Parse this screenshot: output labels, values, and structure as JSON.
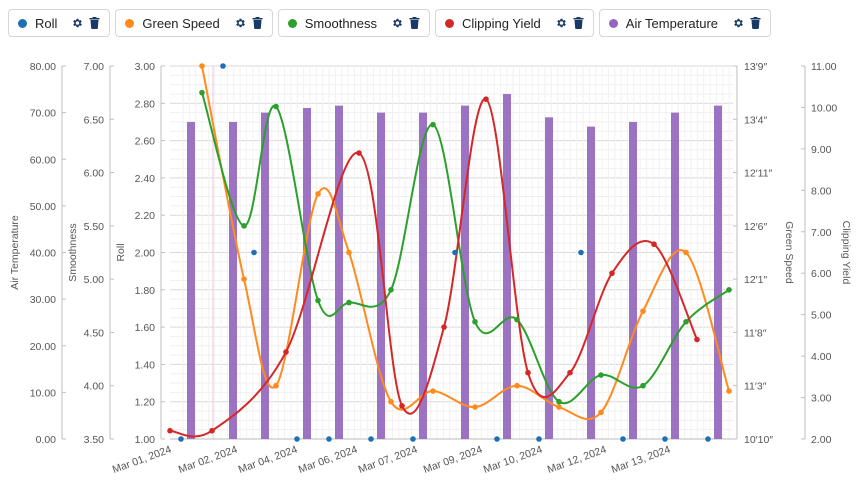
{
  "legend": [
    {
      "label": "Roll",
      "color": "#1f6fb5",
      "settings_icon": "gear-icon",
      "delete_icon": "trash-icon"
    },
    {
      "label": "Green Speed",
      "color": "#ff8a1e",
      "settings_icon": "gear-icon",
      "delete_icon": "trash-icon"
    },
    {
      "label": "Smoothness",
      "color": "#2ca02c",
      "settings_icon": "gear-icon",
      "delete_icon": "trash-icon"
    },
    {
      "label": "Clipping Yield",
      "color": "#d62728",
      "settings_icon": "gear-icon",
      "delete_icon": "trash-icon"
    },
    {
      "label": "Air Temperature",
      "color": "#9467bd",
      "settings_icon": "gear-icon",
      "delete_icon": "trash-icon"
    }
  ],
  "chart_data": {
    "type": "line",
    "x_labels": [
      "Mar 01, 2024",
      "Mar 02, 2024",
      "Mar 04, 2024",
      "Mar 06, 2024",
      "Mar 07, 2024",
      "Mar 09, 2024",
      "Mar 10, 2024",
      "Mar 12, 2024",
      "Mar 13, 2024"
    ],
    "axes": {
      "air_temperature": {
        "title": "Air Temperature",
        "ticks": [
          "0.00",
          "10.00",
          "20.00",
          "30.00",
          "40.00",
          "50.00",
          "60.00",
          "70.00",
          "80.00"
        ],
        "range": [
          0,
          80
        ]
      },
      "smoothness": {
        "title": "Smoothness",
        "ticks": [
          "3.50",
          "4.00",
          "4.50",
          "5.00",
          "5.50",
          "6.00",
          "6.50",
          "7.00"
        ],
        "range": [
          3.5,
          7.0
        ]
      },
      "roll": {
        "title": "Roll",
        "ticks": [
          "1.00",
          "1.20",
          "1.40",
          "1.60",
          "1.80",
          "2.00",
          "2.20",
          "2.40",
          "2.60",
          "2.80",
          "3.00"
        ],
        "range": [
          1.0,
          3.0
        ]
      },
      "green_speed": {
        "title": "Green Speed",
        "ticks": [
          "10′10″",
          "11′3″",
          "11′8″",
          "12′1″",
          "12′6″",
          "12′11″",
          "13′4″",
          "13′9″"
        ],
        "range_inches": [
          130,
          165
        ]
      },
      "clipping_yield": {
        "title": "Clipping Yield",
        "ticks": [
          "2.00",
          "3.00",
          "4.00",
          "5.00",
          "6.00",
          "7.00",
          "8.00",
          "9.00",
          "10.00",
          "11.00"
        ],
        "range": [
          2,
          11
        ]
      }
    },
    "series": [
      {
        "name": "Air Temperature",
        "kind": "bar",
        "axis": "air_temperature",
        "values": [
          68,
          68,
          70,
          71,
          71.5,
          70,
          70,
          71.5,
          74,
          69,
          67,
          68,
          70,
          71.5
        ]
      },
      {
        "name": "Roll",
        "kind": "scatter",
        "axis": "roll",
        "values": [
          1.0,
          3.0,
          2.0,
          1.0,
          1.0,
          1.0,
          1.0,
          2.0,
          1.0,
          1.0,
          2.0,
          1.0,
          1.0,
          1.0
        ]
      },
      {
        "name": "Green Speed",
        "kind": "line",
        "axis": "green_speed",
        "values_inches": [
          165,
          145,
          135,
          153,
          147.5,
          133.5,
          134.5,
          133,
          135,
          133,
          132.5,
          142,
          147.5,
          134.5
        ]
      },
      {
        "name": "Smoothness",
        "kind": "line",
        "axis": "smoothness",
        "values": [
          6.75,
          5.5,
          6.62,
          4.8,
          4.78,
          4.9,
          6.45,
          4.6,
          4.62,
          3.85,
          4.1,
          4.0,
          4.6,
          4.9
        ]
      },
      {
        "name": "Clipping Yield",
        "kind": "line",
        "axis": "clipping_yield",
        "values": [
          2.2,
          2.2,
          4.1,
          8.9,
          2.8,
          4.7,
          10.2,
          3.6,
          3.6,
          6.0,
          6.7,
          4.4
        ]
      }
    ]
  }
}
